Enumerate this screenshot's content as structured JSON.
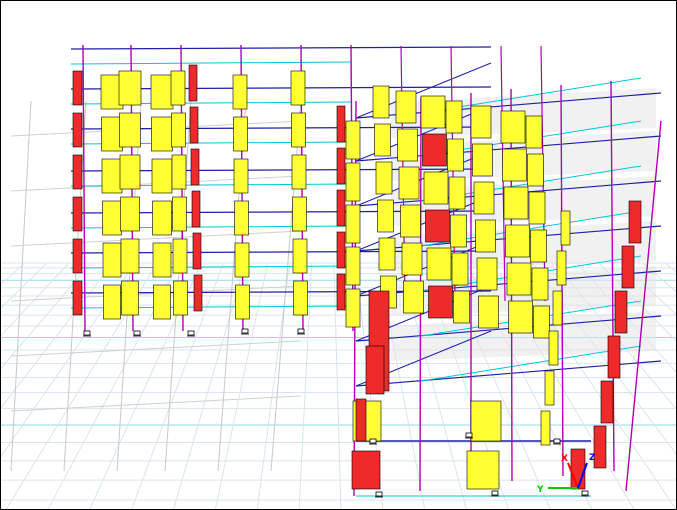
{
  "viewport": {
    "background": "#ffffff",
    "border_color": "#000000"
  },
  "model": {
    "view": "3-D",
    "story_count": 6,
    "colors": {
      "ground_grid": "#d9e4ee",
      "ground_grid_accent": "#8fdcea",
      "story_beam": "#1f1fa8",
      "secondary_beam": "#00c8d8",
      "column": "#b000b0",
      "diagram_positive": "#ffff33",
      "diagram_negative": "#ee2a2a",
      "diagram_outline": "#000000",
      "slab_fill": "#e6e6e6"
    }
  },
  "axis_triad": {
    "x_label": "X",
    "y_label": "Y",
    "z_label": "Z",
    "x_color": "#ff0000",
    "y_color": "#00cc00",
    "z_color": "#0000ff"
  }
}
